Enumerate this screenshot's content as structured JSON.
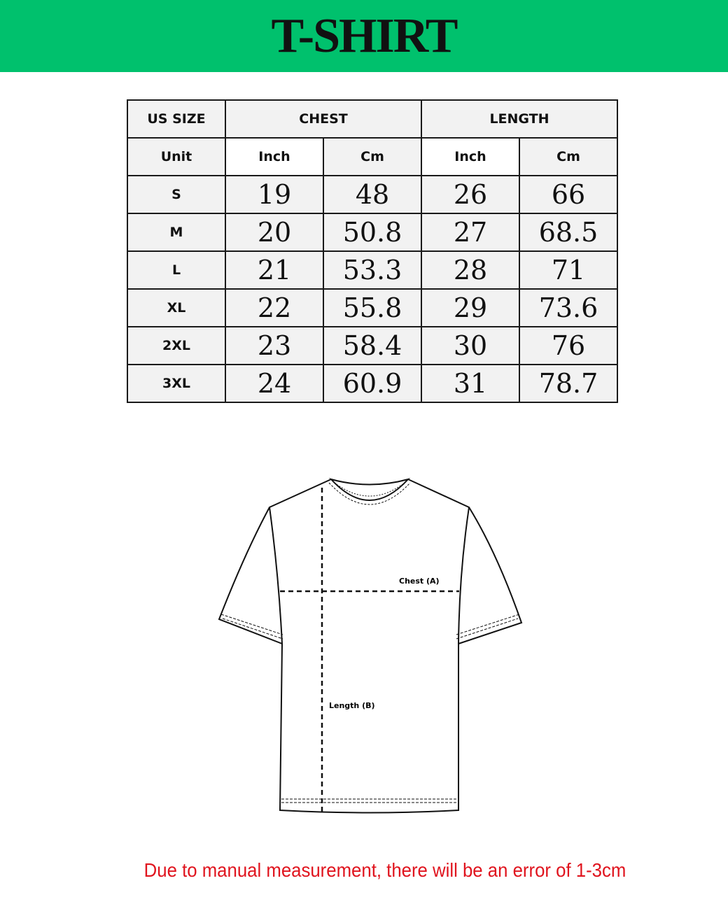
{
  "title": "T-SHIRT",
  "colors": {
    "banner": "#00c16d",
    "note": "#e0141e"
  },
  "table": {
    "header": {
      "size": "US SIZE",
      "chest": "CHEST",
      "length": "LENGTH"
    },
    "units": {
      "label": "Unit",
      "inch": "Inch",
      "cm": "Cm"
    },
    "rows": [
      {
        "size": "S",
        "chest_in": "19",
        "chest_cm": "48",
        "length_in": "26",
        "length_cm": "66"
      },
      {
        "size": "M",
        "chest_in": "20",
        "chest_cm": "50.8",
        "length_in": "27",
        "length_cm": "68.5"
      },
      {
        "size": "L",
        "chest_in": "21",
        "chest_cm": "53.3",
        "length_in": "28",
        "length_cm": "71"
      },
      {
        "size": "XL",
        "chest_in": "22",
        "chest_cm": "55.8",
        "length_in": "29",
        "length_cm": "73.6"
      },
      {
        "size": "2XL",
        "chest_in": "23",
        "chest_cm": "58.4",
        "length_in": "30",
        "length_cm": "76"
      },
      {
        "size": "3XL",
        "chest_in": "24",
        "chest_cm": "60.9",
        "length_in": "31",
        "length_cm": "78.7"
      }
    ]
  },
  "diagram": {
    "chest_label": "Chest (A)",
    "length_label": "Length (B)"
  },
  "note": "Due to manual measurement, there will be an error of 1-3cm"
}
